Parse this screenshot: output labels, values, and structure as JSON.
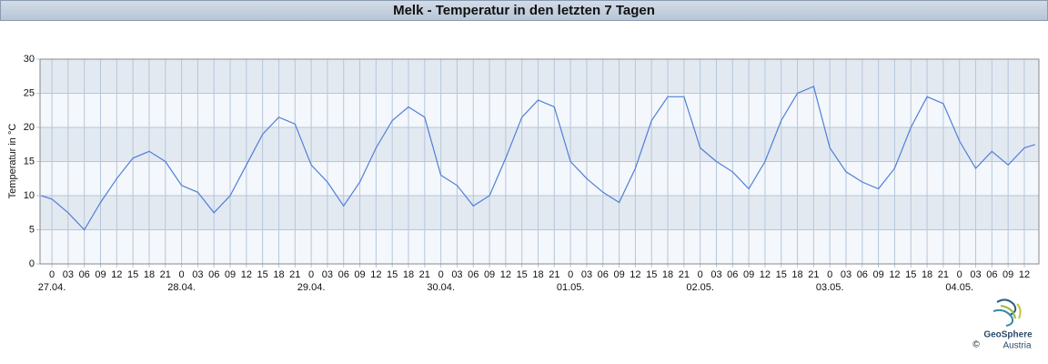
{
  "chart_data": {
    "type": "line",
    "title": "Melk - Temperatur in den letzten 7 Tagen",
    "y_label": "Temperatur in °C",
    "x": [
      -2,
      0,
      3,
      6,
      9,
      12,
      15,
      18,
      21,
      24,
      27,
      30,
      33,
      36,
      39,
      42,
      45,
      48,
      51,
      54,
      57,
      60,
      63,
      66,
      69,
      72,
      75,
      78,
      81,
      84,
      87,
      90,
      93,
      96,
      99,
      102,
      105,
      108,
      111,
      114,
      117,
      120,
      123,
      126,
      129,
      132,
      135,
      138,
      141,
      144,
      147,
      150,
      153,
      156,
      159,
      162,
      165,
      168,
      171,
      174,
      177,
      180,
      182
    ],
    "series": [
      {
        "name": "Temperatur",
        "color": "#4f7fd8",
        "values": [
          10,
          9.5,
          7.5,
          5,
          9,
          12.5,
          15.5,
          16.5,
          15,
          11.5,
          10.5,
          7.5,
          10,
          14.5,
          19,
          21.5,
          20.5,
          14.5,
          12,
          8.5,
          12,
          17,
          21,
          23,
          21.5,
          13,
          11.5,
          8.5,
          10,
          15.5,
          21.5,
          24,
          23,
          15,
          12.5,
          10.5,
          9,
          14,
          21,
          24.5,
          24.5,
          17,
          15,
          13.5,
          11,
          15,
          21,
          25,
          26,
          17,
          13.5,
          12,
          11,
          14,
          20,
          24.5,
          23.5,
          18,
          14,
          16.5,
          14.5,
          17,
          17.5
        ]
      }
    ],
    "xlim": [
      -2.2,
      182.7
    ],
    "ylim": [
      0,
      30
    ],
    "yticks": [
      0,
      5,
      10,
      15,
      20,
      25,
      30
    ],
    "xticks": [
      0,
      {
        "value": 3,
        "label": "03"
      },
      {
        "value": 6,
        "label": "06"
      },
      {
        "value": 9,
        "label": "09"
      },
      12,
      15,
      18,
      21,
      {
        "value": 24,
        "label": "0"
      },
      {
        "value": 27,
        "label": "03"
      },
      {
        "value": 30,
        "label": "06"
      },
      {
        "value": 33,
        "label": "09"
      },
      {
        "value": 36,
        "label": "12"
      },
      {
        "value": 39,
        "label": "15"
      },
      {
        "value": 42,
        "label": "18"
      },
      {
        "value": 45,
        "label": "21"
      },
      {
        "value": 48,
        "label": "0"
      },
      {
        "value": 51,
        "label": "03"
      },
      {
        "value": 54,
        "label": "06"
      },
      {
        "value": 57,
        "label": "09"
      },
      {
        "value": 60,
        "label": "12"
      },
      {
        "value": 63,
        "label": "15"
      },
      {
        "value": 66,
        "label": "18"
      },
      {
        "value": 69,
        "label": "21"
      },
      {
        "value": 72,
        "label": "0"
      },
      {
        "value": 75,
        "label": "03"
      },
      {
        "value": 78,
        "label": "06"
      },
      {
        "value": 81,
        "label": "09"
      },
      {
        "value": 84,
        "label": "12"
      },
      {
        "value": 87,
        "label": "15"
      },
      {
        "value": 90,
        "label": "18"
      },
      {
        "value": 93,
        "label": "21"
      },
      {
        "value": 96,
        "label": "0"
      },
      {
        "value": 99,
        "label": "03"
      },
      {
        "value": 102,
        "label": "06"
      },
      {
        "value": 105,
        "label": "09"
      },
      {
        "value": 108,
        "label": "12"
      },
      {
        "value": 111,
        "label": "15"
      },
      {
        "value": 114,
        "label": "18"
      },
      {
        "value": 117,
        "label": "21"
      },
      {
        "value": 120,
        "label": "0"
      },
      {
        "value": 123,
        "label": "03"
      },
      {
        "value": 126,
        "label": "06"
      },
      {
        "value": 129,
        "label": "09"
      },
      {
        "value": 132,
        "label": "12"
      },
      {
        "value": 135,
        "label": "15"
      },
      {
        "value": 138,
        "label": "18"
      },
      {
        "value": 141,
        "label": "21"
      },
      {
        "value": 144,
        "label": "0"
      },
      {
        "value": 147,
        "label": "03"
      },
      {
        "value": 150,
        "label": "06"
      },
      {
        "value": 153,
        "label": "09"
      },
      {
        "value": 156,
        "label": "12"
      },
      {
        "value": 159,
        "label": "15"
      },
      {
        "value": 162,
        "label": "18"
      },
      {
        "value": 165,
        "label": "21"
      },
      {
        "value": 168,
        "label": "0"
      },
      {
        "value": 171,
        "label": "03"
      },
      {
        "value": 174,
        "label": "06"
      },
      {
        "value": 177,
        "label": "09"
      },
      {
        "value": 180,
        "label": "12"
      }
    ],
    "day_labels": [
      {
        "value": 0,
        "label": "27.04."
      },
      {
        "value": 24,
        "label": "28.04."
      },
      {
        "value": 48,
        "label": "29.04."
      },
      {
        "value": 72,
        "label": "30.04."
      },
      {
        "value": 96,
        "label": "01.05."
      },
      {
        "value": 120,
        "label": "02.05."
      },
      {
        "value": 144,
        "label": "03.05."
      },
      {
        "value": 168,
        "label": "04.05."
      }
    ],
    "grid": true,
    "band_colors": [
      "#f4f7fb",
      "#e3e9f1"
    ]
  },
  "logo": {
    "name": "GeoSphere",
    "sub": "Austria",
    "copyright": "©"
  }
}
